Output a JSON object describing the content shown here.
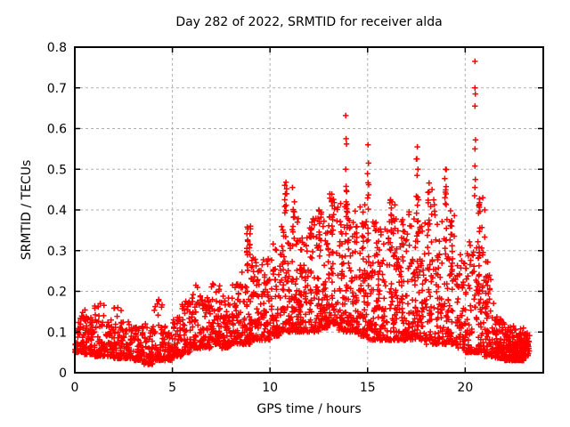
{
  "chart_data": {
    "type": "scatter",
    "title": "Day 282 of 2022, SRMTID for receiver alda",
    "xlabel": "GPS time / hours",
    "ylabel": "SRMTID / TECUs",
    "xlim": [
      0,
      24
    ],
    "ylim": [
      0,
      0.8
    ],
    "xticks": {
      "values": [
        0,
        5,
        10,
        15,
        20
      ],
      "labels": [
        "0",
        "5",
        "10",
        "15",
        "20"
      ]
    },
    "yticks": {
      "values": [
        0,
        0.1,
        0.2,
        0.3,
        0.4,
        0.5,
        0.6,
        0.7,
        0.8
      ],
      "labels": [
        "0",
        "0.1",
        "0.2",
        "0.3",
        "0.4",
        "0.5",
        "0.6",
        "0.7",
        "0.8"
      ]
    },
    "grid": {
      "on": true,
      "style": "dashed",
      "color": "#b0b0b0"
    },
    "legend": "none",
    "marker": {
      "shape": "plus",
      "color": "#ff0000",
      "size": 7
    },
    "border_color": "#000000",
    "background": "#ffffff",
    "seed": 282,
    "point_cloud": {
      "description": "dense band of 30s SRMTID samples; values estimated from plot",
      "bands": [
        {
          "x0": 0.0,
          "x1": 0.5,
          "n": 55,
          "lo": 0.05,
          "hi": 0.15,
          "k": 2.0
        },
        {
          "x0": 0.5,
          "x1": 1.0,
          "n": 55,
          "lo": 0.045,
          "hi": 0.16,
          "k": 2.2
        },
        {
          "x0": 1.0,
          "x1": 1.5,
          "n": 55,
          "lo": 0.04,
          "hi": 0.17,
          "k": 2.2
        },
        {
          "x0": 1.5,
          "x1": 2.0,
          "n": 55,
          "lo": 0.04,
          "hi": 0.13,
          "k": 1.8
        },
        {
          "x0": 2.0,
          "x1": 2.5,
          "n": 55,
          "lo": 0.035,
          "hi": 0.16,
          "k": 2.2
        },
        {
          "x0": 2.5,
          "x1": 3.0,
          "n": 50,
          "lo": 0.035,
          "hi": 0.13,
          "k": 1.8
        },
        {
          "x0": 3.0,
          "x1": 3.5,
          "n": 50,
          "lo": 0.03,
          "hi": 0.12,
          "k": 1.8
        },
        {
          "x0": 3.5,
          "x1": 4.0,
          "n": 50,
          "lo": 0.02,
          "hi": 0.12,
          "k": 1.8
        },
        {
          "x0": 4.0,
          "x1": 4.5,
          "n": 50,
          "lo": 0.03,
          "hi": 0.18,
          "k": 2.4
        },
        {
          "x0": 4.5,
          "x1": 5.0,
          "n": 50,
          "lo": 0.03,
          "hi": 0.12,
          "k": 1.8
        },
        {
          "x0": 5.0,
          "x1": 5.5,
          "n": 50,
          "lo": 0.04,
          "hi": 0.14,
          "k": 1.8
        },
        {
          "x0": 5.5,
          "x1": 6.0,
          "n": 55,
          "lo": 0.05,
          "hi": 0.18,
          "k": 1.9
        },
        {
          "x0": 6.0,
          "x1": 6.5,
          "n": 58,
          "lo": 0.06,
          "hi": 0.21,
          "k": 1.9
        },
        {
          "x0": 6.5,
          "x1": 7.0,
          "n": 58,
          "lo": 0.06,
          "hi": 0.19,
          "k": 1.8
        },
        {
          "x0": 7.0,
          "x1": 7.5,
          "n": 60,
          "lo": 0.07,
          "hi": 0.22,
          "k": 1.9
        },
        {
          "x0": 7.5,
          "x1": 8.0,
          "n": 60,
          "lo": 0.06,
          "hi": 0.2,
          "k": 1.8
        },
        {
          "x0": 8.0,
          "x1": 8.5,
          "n": 60,
          "lo": 0.07,
          "hi": 0.22,
          "k": 1.8
        },
        {
          "x0": 8.5,
          "x1": 9.0,
          "n": 62,
          "lo": 0.07,
          "hi": 0.28,
          "k": 2.0
        },
        {
          "x0": 9.0,
          "x1": 9.5,
          "n": 62,
          "lo": 0.08,
          "hi": 0.3,
          "k": 2.0
        },
        {
          "x0": 9.5,
          "x1": 10.0,
          "n": 62,
          "lo": 0.08,
          "hi": 0.28,
          "k": 1.9
        },
        {
          "x0": 10.0,
          "x1": 10.5,
          "n": 66,
          "lo": 0.09,
          "hi": 0.33,
          "k": 2.0
        },
        {
          "x0": 10.5,
          "x1": 11.0,
          "n": 66,
          "lo": 0.1,
          "hi": 0.38,
          "k": 2.0
        },
        {
          "x0": 11.0,
          "x1": 11.5,
          "n": 66,
          "lo": 0.1,
          "hi": 0.4,
          "k": 2.0
        },
        {
          "x0": 11.5,
          "x1": 12.0,
          "n": 66,
          "lo": 0.1,
          "hi": 0.34,
          "k": 1.9
        },
        {
          "x0": 12.0,
          "x1": 12.5,
          "n": 66,
          "lo": 0.1,
          "hi": 0.38,
          "k": 2.0
        },
        {
          "x0": 12.5,
          "x1": 13.0,
          "n": 66,
          "lo": 0.11,
          "hi": 0.4,
          "k": 2.0
        },
        {
          "x0": 13.0,
          "x1": 13.5,
          "n": 66,
          "lo": 0.12,
          "hi": 0.44,
          "k": 2.1
        },
        {
          "x0": 13.5,
          "x1": 14.0,
          "n": 66,
          "lo": 0.1,
          "hi": 0.42,
          "k": 2.1
        },
        {
          "x0": 14.0,
          "x1": 14.5,
          "n": 66,
          "lo": 0.1,
          "hi": 0.38,
          "k": 2.0
        },
        {
          "x0": 14.5,
          "x1": 15.0,
          "n": 66,
          "lo": 0.09,
          "hi": 0.42,
          "k": 2.0
        },
        {
          "x0": 15.0,
          "x1": 15.5,
          "n": 66,
          "lo": 0.08,
          "hi": 0.38,
          "k": 2.0
        },
        {
          "x0": 15.5,
          "x1": 16.0,
          "n": 66,
          "lo": 0.08,
          "hi": 0.36,
          "k": 2.0
        },
        {
          "x0": 16.0,
          "x1": 16.5,
          "n": 66,
          "lo": 0.08,
          "hi": 0.42,
          "k": 2.1
        },
        {
          "x0": 16.5,
          "x1": 17.0,
          "n": 62,
          "lo": 0.08,
          "hi": 0.36,
          "k": 2.0
        },
        {
          "x0": 17.0,
          "x1": 17.5,
          "n": 62,
          "lo": 0.08,
          "hi": 0.4,
          "k": 2.0
        },
        {
          "x0": 17.5,
          "x1": 18.0,
          "n": 62,
          "lo": 0.08,
          "hi": 0.4,
          "k": 2.0
        },
        {
          "x0": 18.0,
          "x1": 18.5,
          "n": 58,
          "lo": 0.07,
          "hi": 0.45,
          "k": 2.2
        },
        {
          "x0": 18.5,
          "x1": 19.0,
          "n": 58,
          "lo": 0.07,
          "hi": 0.38,
          "k": 2.1
        },
        {
          "x0": 19.0,
          "x1": 19.5,
          "n": 58,
          "lo": 0.07,
          "hi": 0.4,
          "k": 2.1
        },
        {
          "x0": 19.5,
          "x1": 20.0,
          "n": 58,
          "lo": 0.06,
          "hi": 0.3,
          "k": 2.0
        },
        {
          "x0": 20.0,
          "x1": 20.5,
          "n": 58,
          "lo": 0.05,
          "hi": 0.33,
          "k": 2.1
        },
        {
          "x0": 20.5,
          "x1": 21.0,
          "n": 62,
          "lo": 0.05,
          "hi": 0.38,
          "k": 2.2
        },
        {
          "x0": 21.0,
          "x1": 21.5,
          "n": 60,
          "lo": 0.04,
          "hi": 0.24,
          "k": 2.1
        },
        {
          "x0": 21.5,
          "x1": 22.0,
          "n": 80,
          "lo": 0.035,
          "hi": 0.14,
          "k": 1.8
        },
        {
          "x0": 22.0,
          "x1": 22.5,
          "n": 90,
          "lo": 0.03,
          "hi": 0.12,
          "k": 1.6
        },
        {
          "x0": 22.5,
          "x1": 23.0,
          "n": 90,
          "lo": 0.03,
          "hi": 0.11,
          "k": 1.6
        },
        {
          "x0": 23.0,
          "x1": 23.3,
          "n": 45,
          "lo": 0.04,
          "hi": 0.1,
          "k": 1.5
        }
      ],
      "streaks": [
        {
          "x": 8.85,
          "y0": 0.24,
          "y1": 0.36,
          "n": 10
        },
        {
          "x": 9.0,
          "y0": 0.28,
          "y1": 0.355,
          "n": 6
        },
        {
          "x": 10.8,
          "y0": 0.35,
          "y1": 0.465,
          "n": 8
        },
        {
          "x": 11.2,
          "y0": 0.3,
          "y1": 0.42,
          "n": 8
        },
        {
          "x": 12.1,
          "y0": 0.28,
          "y1": 0.38,
          "n": 7
        },
        {
          "x": 12.55,
          "y0": 0.3,
          "y1": 0.4,
          "n": 7
        },
        {
          "x": 13.2,
          "y0": 0.32,
          "y1": 0.44,
          "n": 8
        },
        {
          "x": 13.9,
          "y0": 0.28,
          "y1": 0.46,
          "n": 9
        },
        {
          "x": 14.4,
          "y0": 0.28,
          "y1": 0.4,
          "n": 7
        },
        {
          "x": 14.75,
          "y0": 0.3,
          "y1": 0.42,
          "n": 8
        },
        {
          "x": 15.05,
          "y0": 0.4,
          "y1": 0.52,
          "n": 6
        },
        {
          "x": 16.2,
          "y0": 0.3,
          "y1": 0.43,
          "n": 9
        },
        {
          "x": 16.8,
          "y0": 0.26,
          "y1": 0.38,
          "n": 7
        },
        {
          "x": 17.55,
          "y0": 0.3,
          "y1": 0.55,
          "n": 12
        },
        {
          "x": 18.15,
          "y0": 0.32,
          "y1": 0.48,
          "n": 8
        },
        {
          "x": 19.0,
          "y0": 0.28,
          "y1": 0.5,
          "n": 14
        },
        {
          "x": 19.3,
          "y0": 0.26,
          "y1": 0.4,
          "n": 7
        },
        {
          "x": 20.7,
          "y0": 0.14,
          "y1": 0.43,
          "n": 24
        },
        {
          "x": 21.1,
          "y0": 0.12,
          "y1": 0.3,
          "n": 8
        }
      ],
      "outliers": [
        [
          13.88,
          0.632
        ],
        [
          13.9,
          0.575
        ],
        [
          13.92,
          0.562
        ],
        [
          13.88,
          0.5
        ],
        [
          13.9,
          0.458
        ],
        [
          13.93,
          0.445
        ],
        [
          13.9,
          0.42
        ],
        [
          20.5,
          0.765
        ],
        [
          20.5,
          0.7
        ],
        [
          20.52,
          0.685
        ],
        [
          20.5,
          0.655
        ],
        [
          20.53,
          0.572
        ],
        [
          20.5,
          0.55
        ],
        [
          20.5,
          0.508
        ],
        [
          20.52,
          0.475
        ],
        [
          20.5,
          0.455
        ],
        [
          20.48,
          0.435
        ],
        [
          15.02,
          0.56
        ],
        [
          15.05,
          0.515
        ],
        [
          10.82,
          0.468
        ],
        [
          10.85,
          0.452
        ],
        [
          10.8,
          0.44
        ],
        [
          17.55,
          0.555
        ],
        [
          17.5,
          0.525
        ],
        [
          17.58,
          0.5
        ],
        [
          11.15,
          0.455
        ],
        [
          11.25,
          0.42
        ],
        [
          12.5,
          0.4
        ],
        [
          16.25,
          0.42
        ],
        [
          18.3,
          0.45
        ],
        [
          19.0,
          0.5
        ],
        [
          9.0,
          0.36
        ],
        [
          6.2,
          0.215
        ],
        [
          4.3,
          0.18
        ],
        [
          2.2,
          0.16
        ],
        [
          1.3,
          0.17
        ],
        [
          20.9,
          0.43
        ],
        [
          21.0,
          0.4
        ]
      ]
    }
  }
}
